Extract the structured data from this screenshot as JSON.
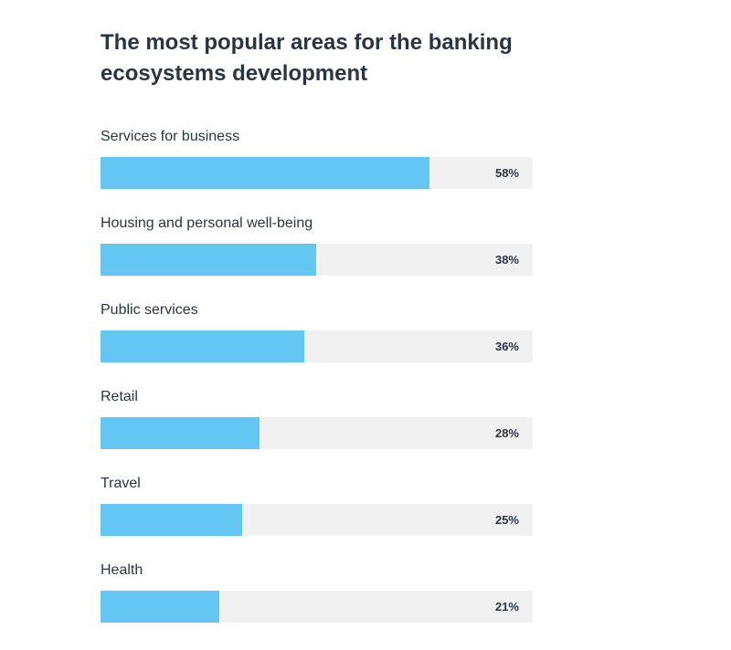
{
  "chart_data": {
    "type": "bar",
    "orientation": "horizontal",
    "title": "The most popular areas for the banking ecosystems development",
    "categories": [
      "Services for business",
      "Housing and personal well-being",
      "Public services",
      "Retail",
      "Travel",
      "Health"
    ],
    "values": [
      58,
      38,
      36,
      28,
      25,
      21
    ],
    "value_labels": [
      "58%",
      "38%",
      "36%",
      "28%",
      "25%",
      "21%"
    ],
    "unit": "%",
    "bar_color": "#64c7f3",
    "track_color": "#f1f1f2",
    "grid": false,
    "legend": "none"
  }
}
